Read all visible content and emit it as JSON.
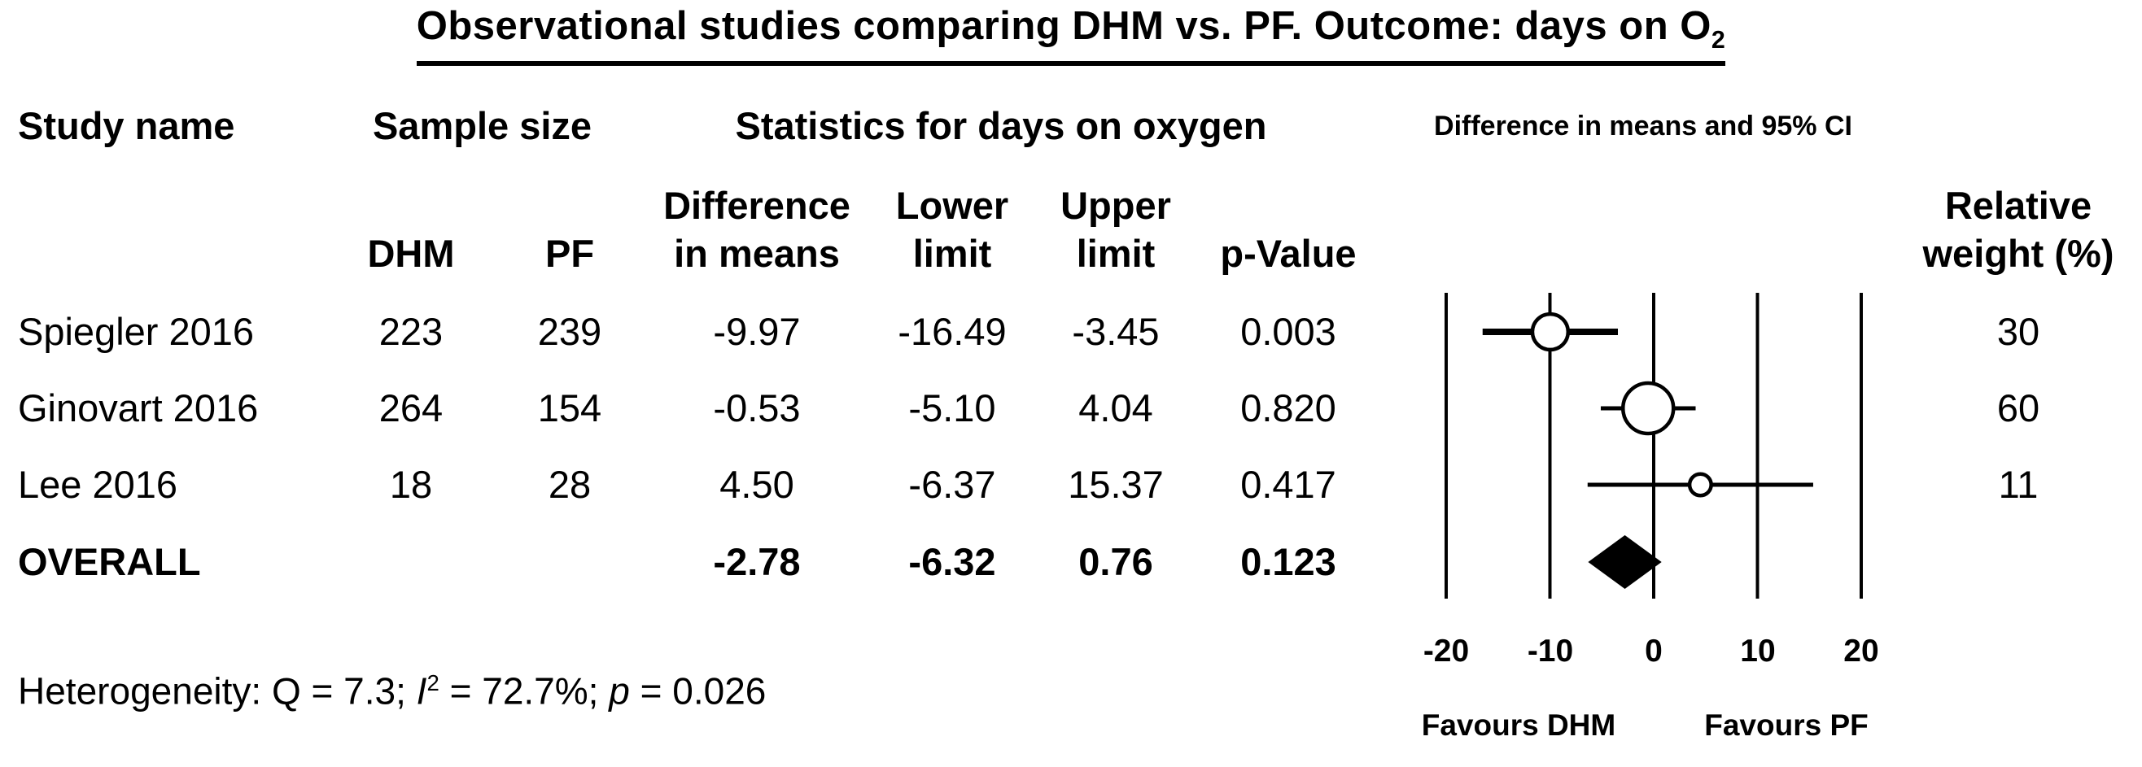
{
  "title": {
    "text": "Observational studies comparing DHM vs. PF. Outcome: days on O",
    "subscript": "2"
  },
  "headers": {
    "study": "Study name",
    "sample_size": "Sample size",
    "statistics": "Statistics for days on oxygen",
    "ci_plot": "Difference in means and 95% CI",
    "col_dhm": "DHM",
    "col_pf": "PF",
    "col_diff_line1": "Difference",
    "col_diff_line2": "in means",
    "col_lower_line1": "Lower",
    "col_lower_line2": "limit",
    "col_upper_line1": "Upper",
    "col_upper_line2": "limit",
    "col_pvalue": "p-Value",
    "col_weight_line1": "Relative",
    "col_weight_line2": "weight (%)"
  },
  "rows": [
    {
      "study": "Spiegler 2016",
      "dhm": "223",
      "pf": "239",
      "diff": "-9.97",
      "lower": "-16.49",
      "upper": "-3.45",
      "p": "0.003",
      "weight": "30"
    },
    {
      "study": "Ginovart 2016",
      "dhm": "264",
      "pf": "154",
      "diff": "-0.53",
      "lower": "-5.10",
      "upper": "4.04",
      "p": "0.820",
      "weight": "60"
    },
    {
      "study": "Lee 2016",
      "dhm": "18",
      "pf": "28",
      "diff": "4.50",
      "lower": "-6.37",
      "upper": "15.37",
      "p": "0.417",
      "weight": "11"
    },
    {
      "study": "OVERALL",
      "dhm": "",
      "pf": "",
      "diff": "-2.78",
      "lower": "-6.32",
      "upper": "0.76",
      "p": "0.123",
      "weight": ""
    }
  ],
  "heterogeneity": {
    "prefix": "Heterogeneity: Q = 7.3; ",
    "i_label": "I",
    "i_sup": "2",
    "mid": " = 72.7%; ",
    "p_label": "p",
    "suffix": " = 0.026"
  },
  "axis": {
    "ticks": [
      "-20",
      "-10",
      "0",
      "10",
      "20"
    ],
    "favours_left": "Favours DHM",
    "favours_right": "Favours PF"
  },
  "chart_data": {
    "type": "forest",
    "title": "Observational studies comparing DHM vs. PF. Outcome: days on O2",
    "measure": "Difference in means and 95% CI",
    "xlim": [
      -24,
      24
    ],
    "axis_ticks": [
      -20,
      -10,
      0,
      10,
      20
    ],
    "grid": true,
    "studies": [
      {
        "name": "Spiegler 2016",
        "n_dhm": 223,
        "n_pf": 239,
        "mean_diff": -9.97,
        "ci_lower": -16.49,
        "ci_upper": -3.45,
        "p_value": 0.003,
        "relative_weight_pct": 30,
        "marker": "circle"
      },
      {
        "name": "Ginovart 2016",
        "n_dhm": 264,
        "n_pf": 154,
        "mean_diff": -0.53,
        "ci_lower": -5.1,
        "ci_upper": 4.04,
        "p_value": 0.82,
        "relative_weight_pct": 60,
        "marker": "circle"
      },
      {
        "name": "Lee 2016",
        "n_dhm": 18,
        "n_pf": 28,
        "mean_diff": 4.5,
        "ci_lower": -6.37,
        "ci_upper": 15.37,
        "p_value": 0.417,
        "relative_weight_pct": 11,
        "marker": "circle"
      }
    ],
    "overall": {
      "name": "OVERALL",
      "mean_diff": -2.78,
      "ci_lower": -6.32,
      "ci_upper": 0.76,
      "p_value": 0.123,
      "marker": "diamond"
    },
    "heterogeneity": {
      "Q": 7.3,
      "I2_pct": 72.7,
      "p": 0.026
    },
    "favours": {
      "left": "Favours DHM",
      "right": "Favours PF"
    }
  }
}
